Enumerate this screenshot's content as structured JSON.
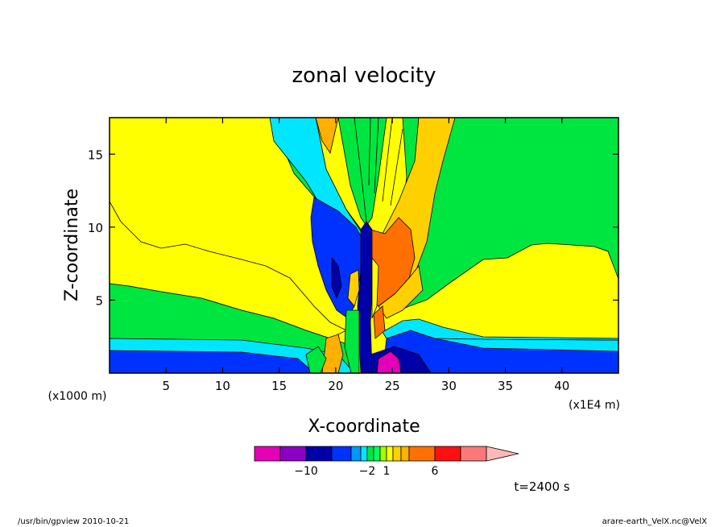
{
  "chart_data": {
    "type": "contour",
    "title": "zonal velocity",
    "xlabel": "X-coordinate",
    "ylabel": "Z-coordinate",
    "x_unit": "(x1E4 m)",
    "y_unit": "(x1000 m)",
    "xlim": [
      0,
      45
    ],
    "ylim": [
      0,
      17.5
    ],
    "x_ticks": [
      5,
      10,
      15,
      20,
      25,
      30,
      35,
      40
    ],
    "y_ticks": [
      5,
      10,
      15
    ],
    "colorbar": {
      "levels": [
        -12,
        -10,
        -8,
        -6,
        -4,
        -2,
        -1,
        0,
        1,
        2,
        3,
        4,
        6,
        8,
        10
      ],
      "colors": [
        "#e300b6",
        "#8b00c2",
        "#0000a8",
        "#0032ff",
        "#0096ff",
        "#00e6ff",
        "#00e640",
        "#00ff60",
        "#a0ff00",
        "#ffff00",
        "#ffd000",
        "#ffb000",
        "#ff7000",
        "#ff1010",
        "#ff7878",
        "#ffb8b8"
      ],
      "tick_labels": [
        {
          "value": -10,
          "label": "−10"
        },
        {
          "value": -2,
          "label": "−2"
        },
        {
          "value": 1,
          "label": "1"
        },
        {
          "value": 6,
          "label": "6"
        }
      ]
    },
    "time_label": "t=2400 s"
  },
  "footer": {
    "left": "/usr/bin/gpview  2010-10-21",
    "right": "arare-earth_VelX.nc@VelX"
  }
}
